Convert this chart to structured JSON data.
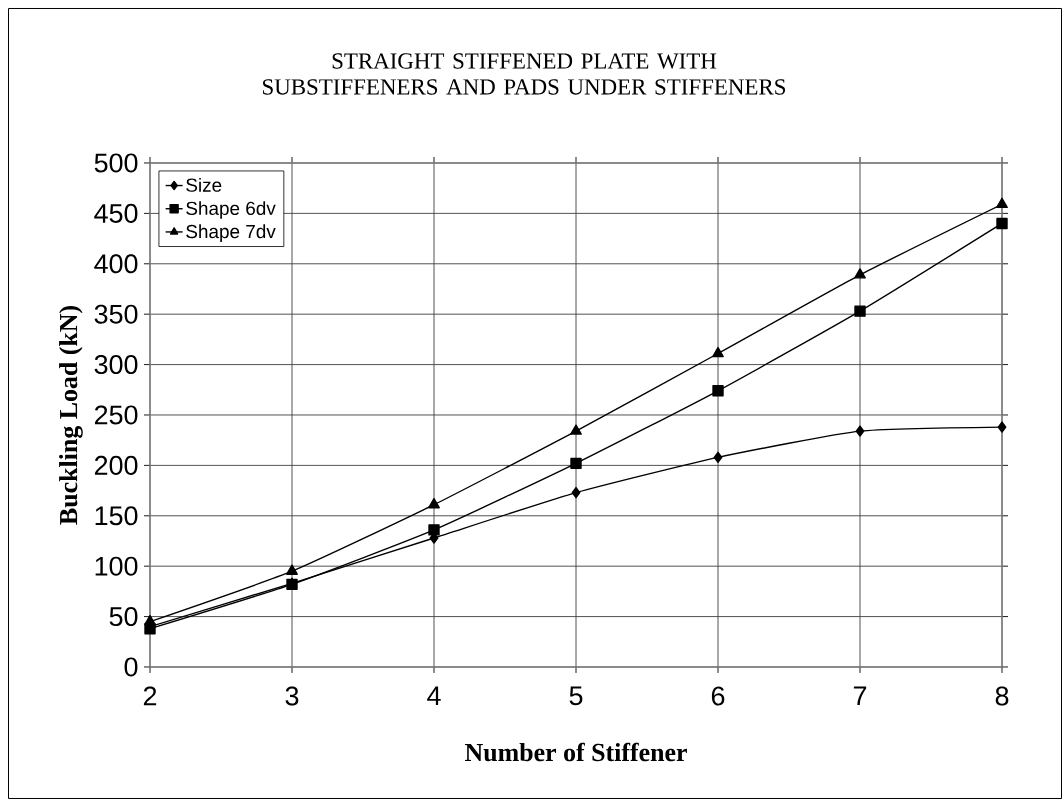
{
  "chart_data": {
    "type": "line",
    "title": "STRAIGHT STIFFENED PLATE WITH SUBSTIFFENERS AND PADS UNDER STIFFENERS",
    "xlabel": "Number of Stiffener",
    "ylabel": "Buckling Load (kN)",
    "x": [
      2,
      3,
      4,
      5,
      6,
      7,
      8
    ],
    "series": [
      {
        "name": "Size",
        "color": "#000000",
        "marker": "diamond",
        "values": [
          40,
          83,
          128,
          173,
          208,
          234,
          238
        ]
      },
      {
        "name": "Shape 6dv",
        "color": "#000000",
        "marker": "square",
        "values": [
          38,
          82,
          136,
          202,
          274,
          353,
          440
        ]
      },
      {
        "name": "Shape 7dv",
        "color": "#000000",
        "marker": "triangle",
        "values": [
          45,
          95,
          161,
          234,
          311,
          389,
          459
        ]
      }
    ],
    "xlim": [
      2,
      8
    ],
    "xticks": [
      2,
      3,
      4,
      5,
      6,
      7,
      8
    ],
    "ylim": [
      0,
      500
    ],
    "yticks": [
      0,
      50,
      100,
      150,
      200,
      250,
      300,
      350,
      400,
      450,
      500
    ],
    "grid": true,
    "legend": "top left",
    "line_style": "solid"
  }
}
